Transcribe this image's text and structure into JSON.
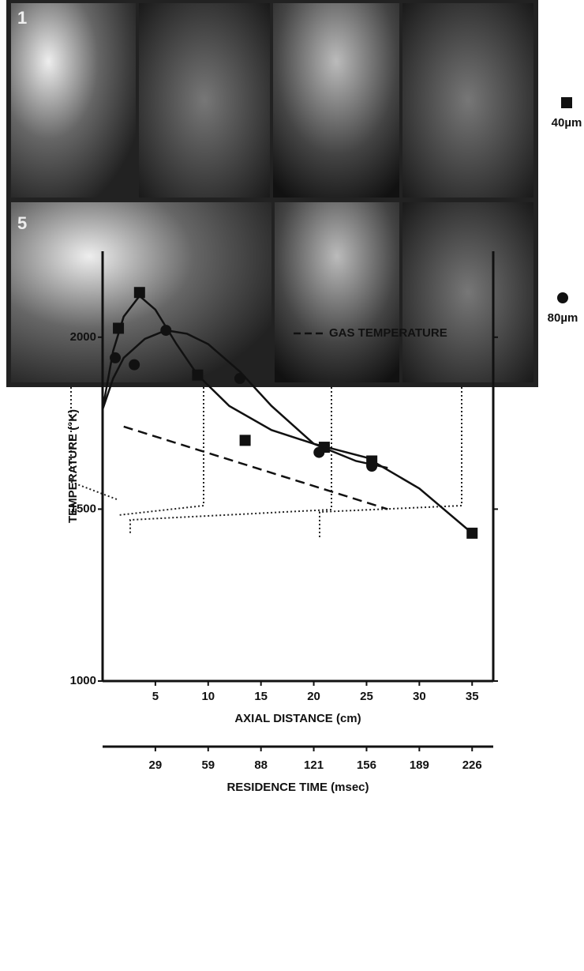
{
  "micrograph": {
    "panel_labels": [
      "1",
      "5"
    ]
  },
  "chart_data": {
    "type": "scatter",
    "y_label": "TEMPERATURE (°K)",
    "x_label": "AXIAL DISTANCE (cm)",
    "x2_label": "RESIDENCE TIME (msec)",
    "xlim": [
      0,
      37
    ],
    "xticks": [
      5,
      10,
      15,
      20,
      25,
      30,
      35
    ],
    "x2ticks": [
      29,
      59,
      88,
      121,
      156,
      189,
      226
    ],
    "ylim": [
      1000,
      2250
    ],
    "yticks": [
      1000,
      1500,
      2000
    ],
    "series": [
      {
        "name": "40µm",
        "marker": "square",
        "color": "#111",
        "x": [
          1.5,
          3.5,
          9,
          13.5,
          21,
          25.5,
          35
        ],
        "values": [
          2026,
          2130,
          1890,
          1700,
          1680,
          1640,
          1430
        ],
        "fit": {
          "x": [
            0,
            1,
            2,
            3.5,
            5,
            7,
            9,
            12,
            16,
            20,
            25,
            30,
            35
          ],
          "values": [
            1790,
            1960,
            2060,
            2120,
            2080,
            1980,
            1890,
            1800,
            1730,
            1690,
            1650,
            1560,
            1430
          ]
        }
      },
      {
        "name": "80µm",
        "marker": "circle",
        "color": "#111",
        "x": [
          1.2,
          3,
          6,
          13,
          20.5,
          25.5
        ],
        "values": [
          1940,
          1920,
          2020,
          1880,
          1665,
          1625
        ],
        "fit": {
          "x": [
            0,
            1,
            2,
            4,
            6,
            8,
            10,
            13,
            16,
            20,
            24,
            27
          ],
          "values": [
            1790,
            1880,
            1940,
            1995,
            2020,
            2010,
            1980,
            1900,
            1800,
            1690,
            1640,
            1620
          ]
        }
      },
      {
        "name": "GAS TEMPERATURE",
        "marker": "dashed",
        "color": "#111",
        "x": [
          2,
          27
        ],
        "values": [
          1740,
          1500
        ]
      }
    ]
  }
}
